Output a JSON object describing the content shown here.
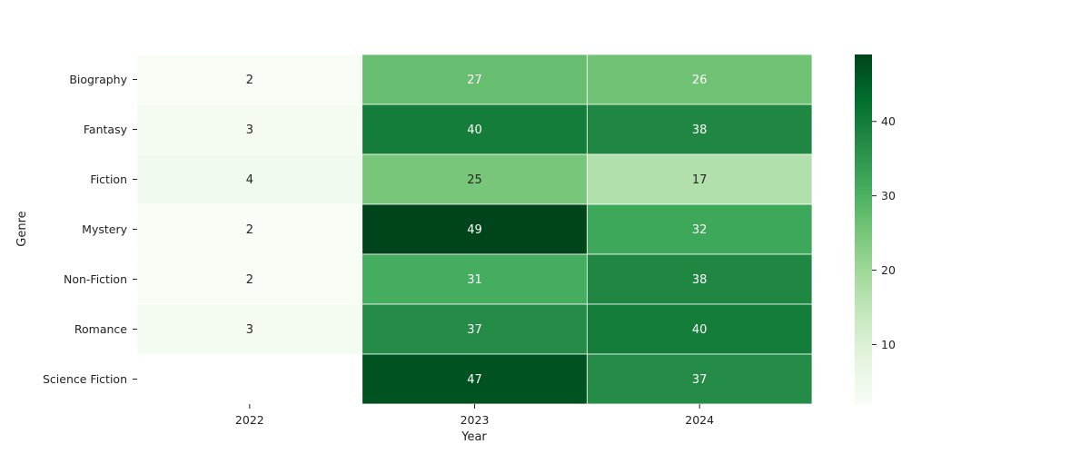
{
  "chart_data": {
    "type": "heatmap",
    "title": "",
    "xlabel": "Year",
    "ylabel": "Genre",
    "x_categories": [
      "2022",
      "2023",
      "2024"
    ],
    "y_categories": [
      "Biography",
      "Fantasy",
      "Fiction",
      "Mystery",
      "Non-Fiction",
      "Romance",
      "Science Fiction"
    ],
    "values": [
      [
        2,
        27,
        26
      ],
      [
        3,
        40,
        38
      ],
      [
        4,
        25,
        17
      ],
      [
        2,
        49,
        32
      ],
      [
        2,
        31,
        38
      ],
      [
        3,
        37,
        40
      ],
      [
        null,
        47,
        37
      ]
    ],
    "colorbar": {
      "min": 2,
      "max": 49,
      "ticks": [
        "10",
        "20",
        "30",
        "40"
      ],
      "colormap": "Greens",
      "low_color": "#f7fcf5",
      "high_color": "#00441b"
    },
    "cell_borders": "#ffffff",
    "grid": false,
    "legend": "colorbar-right"
  }
}
